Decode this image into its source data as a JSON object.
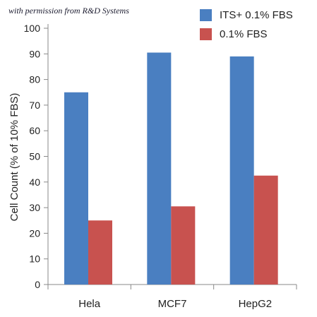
{
  "credit_text": "with permission from R&D Systems",
  "colors": {
    "its": "#4a7fc1",
    "fbs": "#c8524f",
    "axis": "#888888"
  },
  "chart_data": {
    "type": "bar",
    "title": "",
    "xlabel": "",
    "ylabel": "Cell Count (% of 10% FBS)",
    "categories": [
      "Hela",
      "MCF7",
      "HepG2"
    ],
    "ylim": [
      0,
      100
    ],
    "yticks": [
      0,
      10,
      20,
      30,
      40,
      50,
      60,
      70,
      80,
      90,
      100
    ],
    "grid": false,
    "legend_position": "top-right",
    "series": [
      {
        "name": "ITS+ 0.1% FBS",
        "color": "#4a7fc1",
        "values": [
          75,
          90.5,
          89
        ]
      },
      {
        "name": "0.1% FBS",
        "color": "#c8524f",
        "values": [
          25,
          30.5,
          42.5
        ]
      }
    ]
  }
}
